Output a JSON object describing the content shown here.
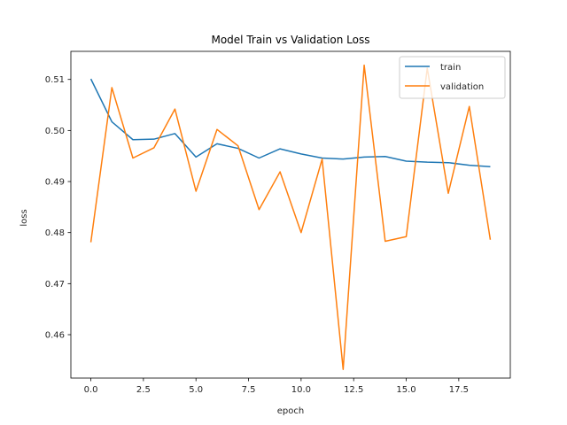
{
  "chart_data": {
    "type": "line",
    "title": "Model Train vs Validation Loss",
    "xlabel": "epoch",
    "ylabel": "loss",
    "xlim": [
      -0.95,
      19.95
    ],
    "ylim": [
      0.4515,
      0.5155
    ],
    "x": [
      0,
      1,
      2,
      3,
      4,
      5,
      6,
      7,
      8,
      9,
      10,
      11,
      12,
      13,
      14,
      15,
      16,
      17,
      18,
      19
    ],
    "xticks": [
      0.0,
      2.5,
      5.0,
      7.5,
      10.0,
      12.5,
      15.0,
      17.5
    ],
    "xtick_labels": [
      "0.0",
      "2.5",
      "5.0",
      "7.5",
      "10.0",
      "12.5",
      "15.0",
      "17.5"
    ],
    "yticks": [
      0.46,
      0.47,
      0.48,
      0.49,
      0.5,
      0.51
    ],
    "ytick_labels": [
      "0.46",
      "0.47",
      "0.48",
      "0.49",
      "0.50",
      "0.51"
    ],
    "grid": false,
    "legend_position": "top-right",
    "series": [
      {
        "name": "train",
        "color": "#1f77b4",
        "values": [
          0.5101,
          0.5017,
          0.4982,
          0.4983,
          0.4994,
          0.4948,
          0.4974,
          0.4965,
          0.4946,
          0.4964,
          0.4954,
          0.4946,
          0.4944,
          0.4948,
          0.4949,
          0.494,
          0.4938,
          0.4937,
          0.4932,
          0.4929
        ]
      },
      {
        "name": "validation",
        "color": "#ff7f0e",
        "values": [
          0.4781,
          0.5084,
          0.4946,
          0.4966,
          0.5042,
          0.4881,
          0.5002,
          0.497,
          0.4845,
          0.4919,
          0.48,
          0.4944,
          0.4532,
          0.5128,
          0.4783,
          0.4792,
          0.5122,
          0.4877,
          0.5047,
          0.4786
        ]
      }
    ]
  }
}
